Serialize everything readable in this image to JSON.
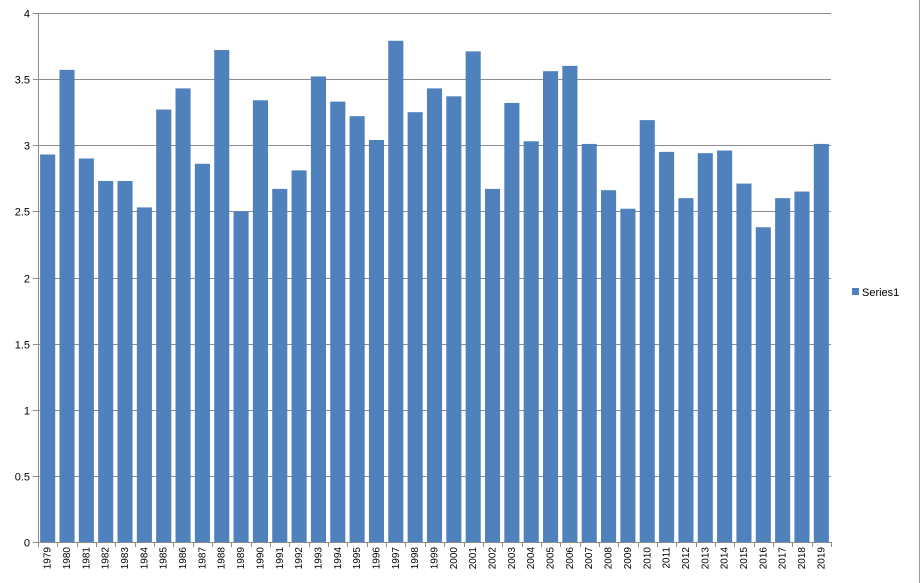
{
  "chart_data": {
    "type": "bar",
    "categories": [
      "1979",
      "1980",
      "1981",
      "1982",
      "1983",
      "1984",
      "1985",
      "1986",
      "1987",
      "1988",
      "1989",
      "1990",
      "1991",
      "1992",
      "1993",
      "1994",
      "1995",
      "1996",
      "1997",
      "1998",
      "1999",
      "2000",
      "2001",
      "2002",
      "2003",
      "2004",
      "2005",
      "2006",
      "2007",
      "2008",
      "2009",
      "2010",
      "2011",
      "2012",
      "2013",
      "2014",
      "2015",
      "2016",
      "2017",
      "2018",
      "2019"
    ],
    "series": [
      {
        "name": "Series1",
        "values": [
          2.93,
          3.57,
          2.9,
          2.73,
          2.73,
          2.53,
          3.27,
          3.43,
          2.86,
          3.72,
          2.5,
          3.34,
          2.67,
          2.81,
          3.52,
          3.33,
          3.22,
          3.04,
          3.79,
          3.25,
          3.43,
          3.37,
          3.71,
          2.67,
          3.32,
          3.03,
          3.56,
          3.6,
          3.01,
          2.66,
          2.52,
          3.19,
          2.95,
          2.6,
          2.94,
          2.96,
          2.71,
          2.38,
          2.6,
          2.65,
          3.01
        ],
        "color": "#4f81bd"
      }
    ],
    "ylim": [
      0,
      4
    ],
    "yticks": [
      "0",
      "0.5",
      "1",
      "1.5",
      "2",
      "2.5",
      "3",
      "3.5",
      "4"
    ],
    "grid": true,
    "legend_position": "right"
  }
}
